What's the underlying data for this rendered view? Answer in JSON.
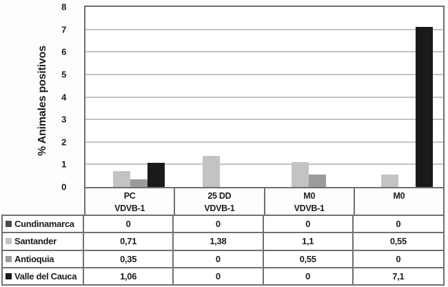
{
  "colors": {
    "background": "#fdfdfd",
    "plot_background": "#ffffff",
    "gridline": "#c2c2c2",
    "table_border": "#6f6f6f",
    "text": "#1c1c1e"
  },
  "chart_data": {
    "type": "bar",
    "title": "",
    "ylabel": "% Animales positivos",
    "xlabel": "",
    "ylim": [
      0,
      8
    ],
    "yticks": [
      "0",
      "1",
      "2",
      "3",
      "4",
      "5",
      "6",
      "7",
      "8"
    ],
    "grid": "horizontal",
    "legend_position": "table-left",
    "categories": [
      {
        "line1": "PC",
        "line2": "VDVB-1"
      },
      {
        "line1": "25 DD",
        "line2": "VDVB-1"
      },
      {
        "line1": "M0",
        "line2": "VDVB-1"
      },
      {
        "line1": "M0",
        "line2": ""
      }
    ],
    "series": [
      {
        "name": "Cundinamarca",
        "color": "#4a4a4a",
        "values": [
          0,
          0,
          0,
          0
        ],
        "value_labels": [
          "0",
          "0",
          "0",
          "0"
        ]
      },
      {
        "name": "Santander",
        "color": "#c3c3c5",
        "values": [
          0.71,
          1.38,
          1.1,
          0.55
        ],
        "value_labels": [
          "0,71",
          "1,38",
          "1,1",
          "0,55"
        ]
      },
      {
        "name": "Antioquia",
        "color": "#9b9b9d",
        "values": [
          0.35,
          0,
          0.55,
          0
        ],
        "value_labels": [
          "0,35",
          "0",
          "0,55",
          "0"
        ]
      },
      {
        "name": "Valle del Cauca",
        "color": "#1a1a1c",
        "values": [
          1.06,
          0,
          0,
          7.1
        ],
        "value_labels": [
          "1,06",
          "0",
          "0",
          "7,1"
        ]
      }
    ]
  }
}
